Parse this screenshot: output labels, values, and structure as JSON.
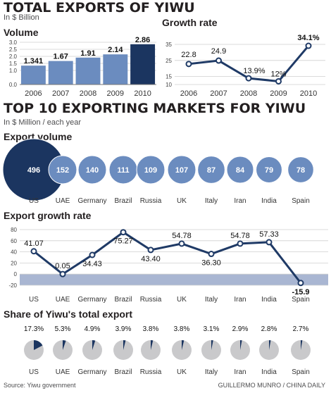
{
  "header": {
    "title": "TOTAL EXPORTS OF YIWU",
    "unit": "In $ Billion",
    "volume_label": "Volume",
    "growth_label": "Growth rate"
  },
  "top10": {
    "title": "TOP 10 EXPORTING MARKETS FOR YIWU",
    "unit": "In $ Million / each year",
    "volume_label": "Export volume",
    "growth_label": "Export growth rate",
    "share_label": "Share of Yiwu's total export"
  },
  "footer": {
    "source": "Source: Yiwu government",
    "credit": "GUILLERMO MUNRO / CHINA DAILY"
  },
  "colors": {
    "light_blue": "#6b8cbf",
    "dark_navy": "#1b3560",
    "line": "#1f3a66",
    "negative_band": "#a9b6d2",
    "pie_gray": "#c9c9cb",
    "grid": "#cfcfcf"
  },
  "chart_data": [
    {
      "id": "volume",
      "type": "bar",
      "categories": [
        "2006",
        "2007",
        "2008",
        "2009",
        "2010"
      ],
      "values": [
        1.341,
        1.67,
        1.91,
        2.14,
        2.86
      ],
      "value_labels": [
        "1.341",
        "1.67",
        "1.91",
        "2.14",
        "2.86"
      ],
      "ylim": [
        0,
        3
      ],
      "yticks": [
        "0.0",
        "1.0",
        "1.5",
        "2.0",
        "2.5",
        "3.0"
      ],
      "ytick_values": [
        0,
        1.0,
        1.5,
        2.0,
        2.5,
        3.0
      ],
      "grid": true
    },
    {
      "id": "growth",
      "type": "line",
      "x": [
        "2006",
        "2007",
        "2008",
        "2009",
        "2010"
      ],
      "values": [
        22.8,
        24.9,
        13.9,
        12,
        34.1
      ],
      "value_labels": [
        "22.8",
        "24.9",
        "13.9%",
        "12%",
        "34.1%"
      ],
      "ylim": [
        10,
        35
      ],
      "yticks": [
        "10",
        "15",
        "25",
        "35"
      ],
      "ytick_values": [
        10,
        15,
        25,
        35
      ],
      "grid": true
    },
    {
      "id": "export_volume",
      "type": "bubble",
      "categories": [
        "US",
        "UAE",
        "Germany",
        "Brazil",
        "Russia",
        "UK",
        "Italy",
        "Iran",
        "India",
        "Spain"
      ],
      "values": [
        496,
        152,
        140,
        111,
        109,
        107,
        87,
        84,
        79,
        78
      ]
    },
    {
      "id": "export_growth",
      "type": "line",
      "categories": [
        "US",
        "UAE",
        "Germany",
        "Brazil",
        "Russia",
        "UK",
        "Italy",
        "Iran",
        "India",
        "Spain"
      ],
      "values": [
        41.07,
        0.05,
        34.43,
        75.27,
        43.4,
        54.78,
        36.3,
        54.78,
        57.33,
        -15.9
      ],
      "value_labels": [
        "41.07",
        "0.05",
        "34.43",
        "75.27",
        "43.40",
        "54.78",
        "36.30",
        "54.78",
        "57.33",
        "-15.9"
      ],
      "ylim": [
        -20,
        80
      ],
      "yticks": [
        "-20",
        "0",
        "20",
        "40",
        "60",
        "80"
      ],
      "ytick_values": [
        -20,
        0,
        20,
        40,
        60,
        80
      ],
      "grid": true
    },
    {
      "id": "share",
      "type": "pie",
      "categories": [
        "US",
        "UAE",
        "Germany",
        "Brazil",
        "Russia",
        "UK",
        "Italy",
        "Iran",
        "India",
        "Spain"
      ],
      "values": [
        17.3,
        5.3,
        4.9,
        3.9,
        3.8,
        3.8,
        3.1,
        2.9,
        2.8,
        2.7
      ],
      "value_labels": [
        "17.3%",
        "5.3%",
        "4.9%",
        "3.9%",
        "3.8%",
        "3.8%",
        "3.1%",
        "2.9%",
        "2.8%",
        "2.7%"
      ]
    }
  ]
}
